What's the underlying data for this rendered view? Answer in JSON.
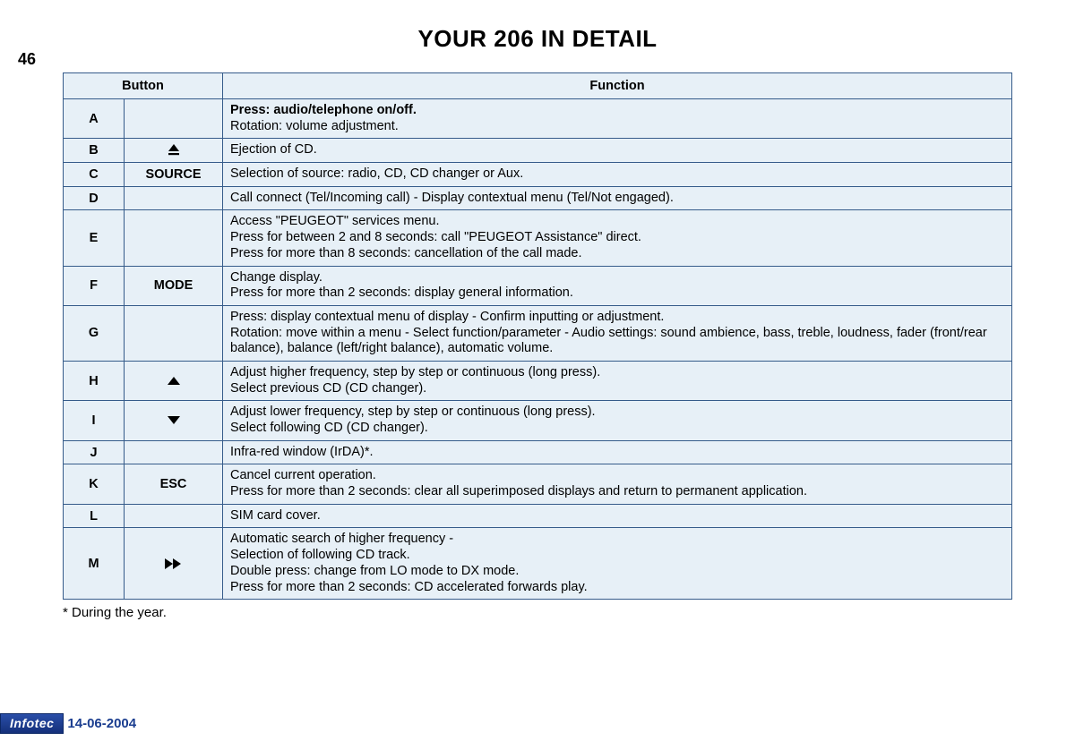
{
  "page_number": "46",
  "title": "YOUR 206 IN DETAIL",
  "headers": {
    "button": "Button",
    "function": "Function"
  },
  "rows": [
    {
      "letter": "A",
      "icon_type": "none",
      "icon_text": "",
      "func_html": "<b>Press: audio/telephone on/off.</b><br>Rotation: volume adjustment."
    },
    {
      "letter": "B",
      "icon_type": "eject",
      "icon_text": "",
      "func_html": "Ejection of CD."
    },
    {
      "letter": "C",
      "icon_type": "text",
      "icon_text": "SOURCE",
      "func_html": "Selection of source: radio, CD, CD changer or Aux."
    },
    {
      "letter": "D",
      "icon_type": "none",
      "icon_text": "",
      "func_html": "Call connect (Tel/Incoming call) - Display contextual menu (Tel/Not engaged)."
    },
    {
      "letter": "E",
      "icon_type": "none",
      "icon_text": "",
      "func_html": "Access \"PEUGEOT\" services menu.<br>Press for between 2 and 8 seconds: call \"PEUGEOT Assistance\" direct.<br>Press for more than 8 seconds: cancellation of the call made."
    },
    {
      "letter": "F",
      "icon_type": "text",
      "icon_text": "MODE",
      "func_html": "Change display.<br>Press for more than 2 seconds: display general information."
    },
    {
      "letter": "G",
      "icon_type": "none",
      "icon_text": "",
      "func_html": "Press: display contextual menu of display - Confirm inputting or adjustment.<br>Rotation: move within a menu - Select function/parameter - Audio settings: sound ambience, bass, treble, loudness, fader (front/rear balance), balance (left/right balance), automatic volume."
    },
    {
      "letter": "H",
      "icon_type": "up",
      "icon_text": "",
      "func_html": "Adjust higher frequency, step by step or continuous (long press).<br>Select previous CD (CD changer)."
    },
    {
      "letter": "I",
      "icon_type": "down",
      "icon_text": "",
      "func_html": "Adjust lower frequency, step by step or continuous (long press).<br>Select following CD (CD changer)."
    },
    {
      "letter": "J",
      "icon_type": "none",
      "icon_text": "",
      "func_html": "Infra-red window (IrDA)*."
    },
    {
      "letter": "K",
      "icon_type": "text",
      "icon_text": "ESC",
      "func_html": "Cancel current operation.<br>Press for more than 2 seconds: clear all superimposed displays and return to permanent application."
    },
    {
      "letter": "L",
      "icon_type": "none",
      "icon_text": "",
      "func_html": "SIM card cover."
    },
    {
      "letter": "M",
      "icon_type": "ffwd",
      "icon_text": "",
      "func_html": "Automatic search of higher frequency -<br>Selection of following CD track.<br>Double press: change from LO mode to DX mode.<br>Press for more than 2 seconds: CD accelerated forwards play."
    }
  ],
  "footnote": "* During the year.",
  "footer": {
    "badge": "Infotec",
    "date": "14-06-2004"
  },
  "style": {
    "table_bg": "#e7f0f7",
    "table_border": "#355b8a",
    "badge_bg_top": "#2a4ea8",
    "badge_bg_bottom": "#15307a",
    "date_color": "#1a3d8f"
  }
}
